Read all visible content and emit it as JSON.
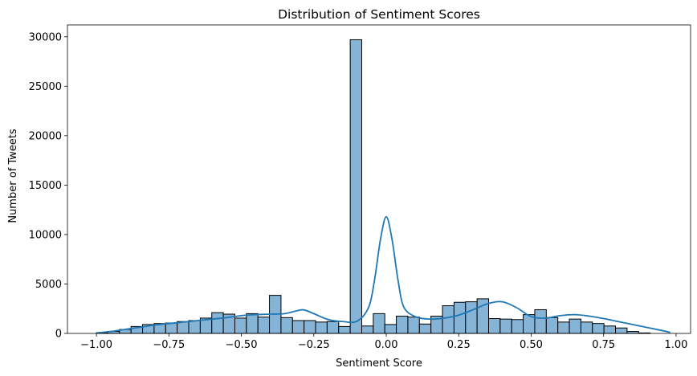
{
  "chart_data": {
    "type": "bar",
    "title": "Distribution of Sentiment Scores",
    "xlabel": "Sentiment Score",
    "ylabel": "Number of Tweets",
    "xlim": [
      -1.1,
      1.05
    ],
    "ylim": [
      0,
      31200
    ],
    "xticks": [
      -1.0,
      -0.75,
      -0.5,
      -0.25,
      0.0,
      0.25,
      0.5,
      0.75,
      1.0
    ],
    "xtick_labels": [
      "−1.00",
      "−0.75",
      "−0.50",
      "−0.25",
      "0.00",
      "0.25",
      "0.50",
      "0.75",
      "1.00"
    ],
    "yticks": [
      0,
      5000,
      10000,
      15000,
      20000,
      25000,
      30000
    ],
    "ytick_labels": [
      "0",
      "5000",
      "10000",
      "15000",
      "20000",
      "25000",
      "30000"
    ],
    "grid": false,
    "legend": "none",
    "bins": {
      "start": -1.0,
      "end": 0.99,
      "width": 0.0398,
      "counts": [
        50,
        200,
        400,
        700,
        900,
        1000,
        1050,
        1200,
        1300,
        1550,
        2100,
        1950,
        1550,
        2000,
        1650,
        3850,
        1600,
        1300,
        1300,
        1150,
        1200,
        700,
        29700,
        750,
        2000,
        900,
        1750,
        1650,
        950,
        1750,
        2800,
        3150,
        3200,
        3500,
        1500,
        1450,
        1400,
        1900,
        2400,
        1600,
        1150,
        1450,
        1150,
        1000,
        750,
        550,
        200,
        50,
        0,
        0
      ]
    },
    "kde": {
      "x": [
        -1.0,
        -0.95,
        -0.9,
        -0.85,
        -0.8,
        -0.75,
        -0.7,
        -0.65,
        -0.6,
        -0.55,
        -0.5,
        -0.45,
        -0.4,
        -0.35,
        -0.3,
        -0.28,
        -0.25,
        -0.2,
        -0.15,
        -0.1,
        -0.06,
        -0.04,
        -0.02,
        0.0,
        0.02,
        0.04,
        0.06,
        0.1,
        0.15,
        0.2,
        0.25,
        0.3,
        0.35,
        0.4,
        0.45,
        0.5,
        0.55,
        0.6,
        0.65,
        0.7,
        0.75,
        0.8,
        0.85,
        0.9,
        0.95,
        0.98
      ],
      "y": [
        50,
        200,
        420,
        620,
        840,
        1000,
        1150,
        1300,
        1450,
        1600,
        1800,
        1900,
        1950,
        2000,
        2350,
        2350,
        2000,
        1400,
        1200,
        1250,
        2700,
        5500,
        9500,
        11800,
        9500,
        5500,
        2700,
        1700,
        1450,
        1550,
        1850,
        2400,
        3000,
        3200,
        2600,
        1700,
        1550,
        1800,
        1900,
        1750,
        1500,
        1200,
        900,
        600,
        300,
        100
      ]
    },
    "colors": {
      "bar_fill": "#86b4d7",
      "bar_edge": "#000000",
      "kde_line": "#1f77b4"
    }
  }
}
